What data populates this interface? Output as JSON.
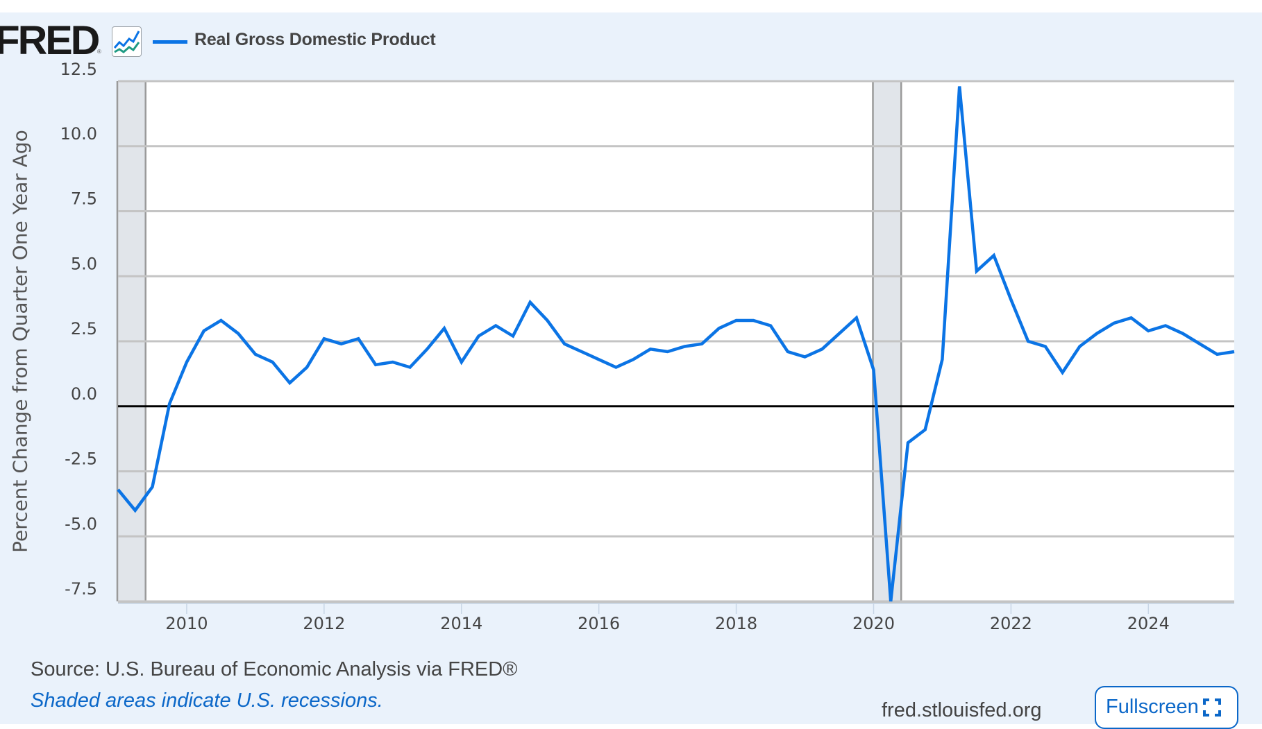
{
  "header": {
    "logo_text": "FRED",
    "logo_registered": "®",
    "logo_icon": "line-chart-icon",
    "legend": [
      {
        "label": "Real Gross Domestic Product",
        "color": "#0b74e5"
      }
    ]
  },
  "footer": {
    "source": "Source: U.S. Bureau of Economic Analysis via FRED®",
    "recession_note": "Shaded areas indicate U.S. recessions.",
    "site": "fred.stlouisfed.org",
    "fullscreen_label": "Fullscreen",
    "fullscreen_icon": "expand-icon"
  },
  "colors": {
    "line": "#0b74e5",
    "background": "#eaf2fb",
    "plot_background": "#ffffff",
    "gridline": "#c4c4c4",
    "zero_line": "#000000",
    "recession_fill": "#e1e5ea",
    "recession_border": "#9a9a9a",
    "link": "#0b67c8"
  },
  "chart_data": {
    "type": "line",
    "title": "Real Gross Domestic Product",
    "xlabel": "",
    "ylabel": "Percent Change from Quarter One Year Ago",
    "ylim": [
      -7.5,
      12.5
    ],
    "yticks": [
      12.5,
      10.0,
      7.5,
      5.0,
      2.5,
      0.0,
      -2.5,
      -5.0,
      -7.5
    ],
    "ytick_labels": [
      "12.5",
      "10.0",
      "7.5",
      "5.0",
      "2.5",
      "0.0",
      "-2.5",
      "-5.0",
      "-7.5"
    ],
    "xlim": [
      "2009 Q1",
      "2025 Q2"
    ],
    "xticks": [
      "2010",
      "2012",
      "2014",
      "2016",
      "2018",
      "2020",
      "2022",
      "2024"
    ],
    "grid": true,
    "legend_position": "top-left",
    "frequency": "quarterly",
    "start": "2009 Q1",
    "recessions": [
      {
        "start": "2009 Q1",
        "end": "2009 Q2"
      },
      {
        "start": "2020 Q1",
        "end": "2020 Q2"
      }
    ],
    "series": [
      {
        "name": "Real Gross Domestic Product",
        "x": [
          "2009 Q1",
          "2009 Q2",
          "2009 Q3",
          "2009 Q4",
          "2010 Q1",
          "2010 Q2",
          "2010 Q3",
          "2010 Q4",
          "2011 Q1",
          "2011 Q2",
          "2011 Q3",
          "2011 Q4",
          "2012 Q1",
          "2012 Q2",
          "2012 Q3",
          "2012 Q4",
          "2013 Q1",
          "2013 Q2",
          "2013 Q3",
          "2013 Q4",
          "2014 Q1",
          "2014 Q2",
          "2014 Q3",
          "2014 Q4",
          "2015 Q1",
          "2015 Q2",
          "2015 Q3",
          "2015 Q4",
          "2016 Q1",
          "2016 Q2",
          "2016 Q3",
          "2016 Q4",
          "2017 Q1",
          "2017 Q2",
          "2017 Q3",
          "2017 Q4",
          "2018 Q1",
          "2018 Q2",
          "2018 Q3",
          "2018 Q4",
          "2019 Q1",
          "2019 Q2",
          "2019 Q3",
          "2019 Q4",
          "2020 Q1",
          "2020 Q2",
          "2020 Q3",
          "2020 Q4",
          "2021 Q1",
          "2021 Q2",
          "2021 Q3",
          "2021 Q4",
          "2022 Q1",
          "2022 Q2",
          "2022 Q3",
          "2022 Q4",
          "2023 Q1",
          "2023 Q2",
          "2023 Q3",
          "2023 Q4",
          "2024 Q1",
          "2024 Q2",
          "2024 Q3",
          "2024 Q4",
          "2025 Q1",
          "2025 Q2"
        ],
        "values": [
          -3.2,
          -4.0,
          -3.1,
          0.1,
          1.7,
          2.9,
          3.3,
          2.8,
          2.0,
          1.7,
          0.9,
          1.5,
          2.6,
          2.4,
          2.6,
          1.6,
          1.7,
          1.5,
          2.2,
          3.0,
          1.7,
          2.7,
          3.1,
          2.7,
          4.0,
          3.3,
          2.4,
          2.1,
          1.8,
          1.5,
          1.8,
          2.2,
          2.1,
          2.3,
          2.4,
          3.0,
          3.3,
          3.3,
          3.1,
          2.1,
          1.9,
          2.2,
          2.8,
          3.4,
          1.4,
          -7.5,
          -1.4,
          -0.9,
          1.8,
          12.3,
          5.2,
          5.8,
          4.1,
          2.5,
          2.3,
          1.3,
          2.3,
          2.8,
          3.2,
          3.4,
          2.9,
          3.1,
          2.8,
          2.4,
          2.0,
          2.1
        ]
      }
    ]
  }
}
